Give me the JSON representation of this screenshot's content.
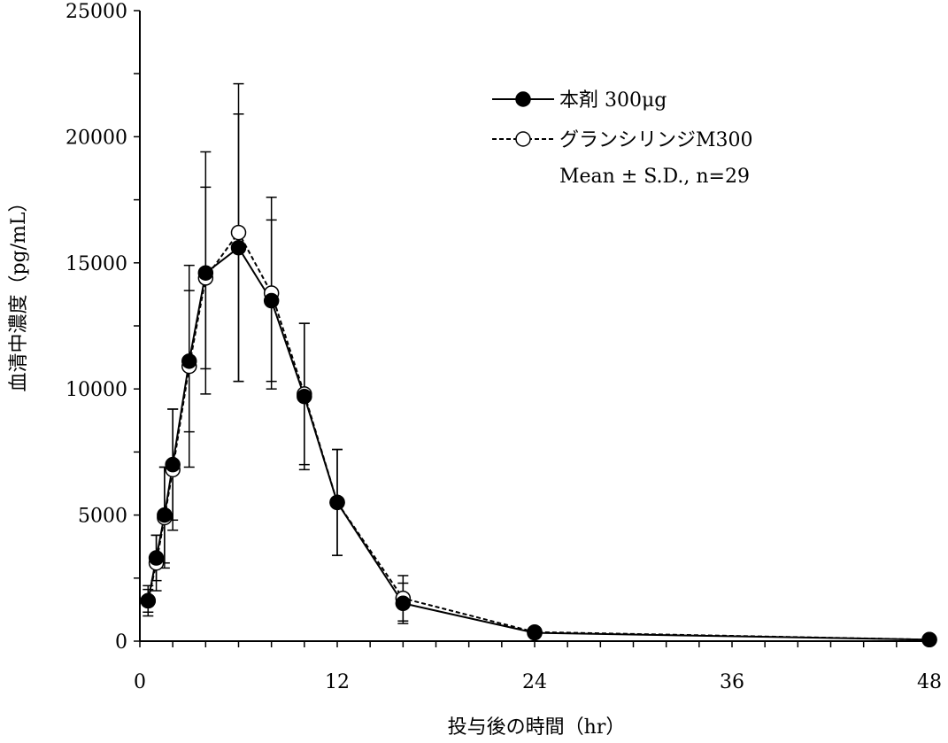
{
  "chart_data": {
    "type": "line",
    "xlabel": "投与後の時間（hr）",
    "ylabel": "血清中濃度（pg/mL）",
    "xlim": [
      0,
      48
    ],
    "ylim": [
      0,
      25000
    ],
    "x_ticks": [
      0,
      12,
      24,
      36,
      48
    ],
    "x_minor_step": 2,
    "y_ticks": [
      0,
      5000,
      10000,
      15000,
      20000,
      25000
    ],
    "y_minor_step": 2500,
    "x_tick_labels": [
      "0",
      "12",
      "24",
      "36",
      "48"
    ],
    "y_tick_labels": [
      "0",
      "5000",
      "10000",
      "15000",
      "20000",
      "25000"
    ],
    "grid": false,
    "legend_position": "top-right",
    "legend_note": "Mean ± S.D., n=29",
    "series": [
      {
        "name": "本剤 300μg",
        "marker": "filled-circle",
        "line_style": "solid",
        "color": "#000000",
        "x": [
          0.5,
          1,
          1.5,
          2,
          3,
          4,
          6,
          8,
          10,
          12,
          16,
          24,
          48
        ],
        "y": [
          1600,
          3300,
          5000,
          7000,
          11100,
          14600,
          15600,
          13500,
          9700,
          5500,
          1500,
          330,
          60
        ],
        "sd": [
          450,
          900,
          1900,
          2200,
          2800,
          4800,
          5300,
          3200,
          2900,
          2100,
          800,
          0,
          0
        ]
      },
      {
        "name": "グランシリンジM300",
        "marker": "open-circle",
        "line_style": "dashed",
        "color": "#000000",
        "x": [
          0.5,
          1,
          1.5,
          2,
          3,
          4,
          6,
          8,
          10,
          12,
          16,
          24,
          48
        ],
        "y": [
          1600,
          3100,
          4900,
          6800,
          10900,
          14400,
          16200,
          13800,
          9800,
          5500,
          1700,
          360,
          60
        ],
        "sd": [
          600,
          1100,
          2000,
          2400,
          4000,
          3600,
          5900,
          3800,
          2800,
          2100,
          900,
          0,
          0
        ]
      }
    ]
  }
}
